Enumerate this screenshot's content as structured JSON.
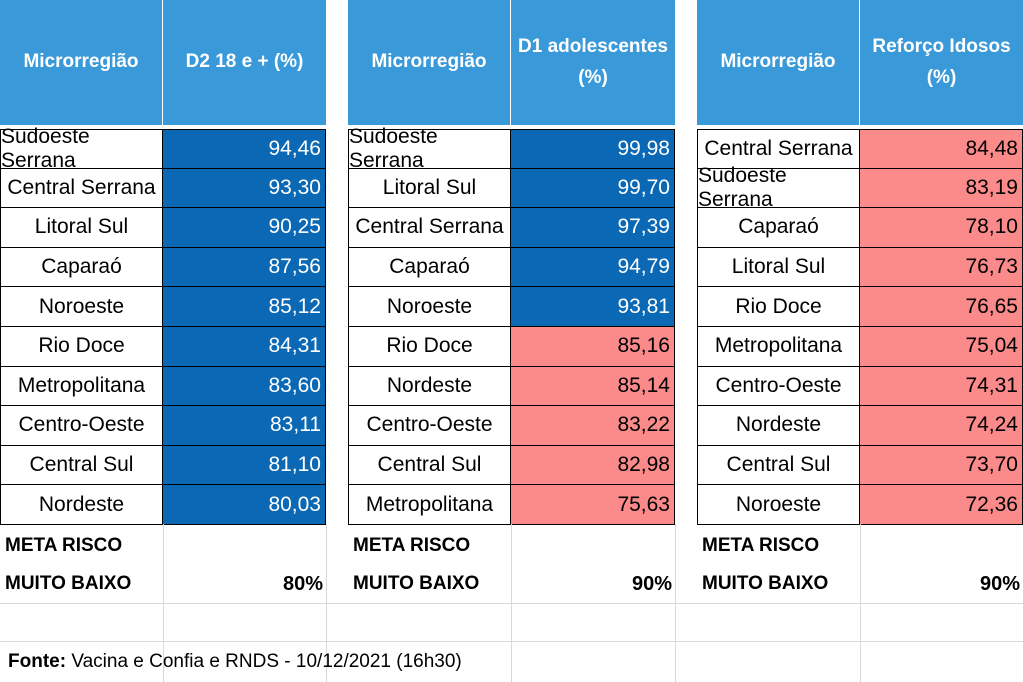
{
  "chart_data": {
    "type": "table",
    "tables": [
      {
        "col1_header": "Microrregião",
        "col2_header_line1": "D2 18 e + (%)",
        "col2_header_line2": "",
        "rows": [
          {
            "name": "Sudoeste Serrana",
            "value": "94,46",
            "status": "blue"
          },
          {
            "name": "Central Serrana",
            "value": "93,30",
            "status": "blue"
          },
          {
            "name": "Litoral Sul",
            "value": "90,25",
            "status": "blue"
          },
          {
            "name": "Caparaó",
            "value": "87,56",
            "status": "blue"
          },
          {
            "name": "Noroeste",
            "value": "85,12",
            "status": "blue"
          },
          {
            "name": "Rio Doce",
            "value": "84,31",
            "status": "blue"
          },
          {
            "name": "Metropolitana",
            "value": "83,60",
            "status": "blue"
          },
          {
            "name": "Centro-Oeste",
            "value": "83,11",
            "status": "blue"
          },
          {
            "name": "Central Sul",
            "value": "81,10",
            "status": "blue"
          },
          {
            "name": "Nordeste",
            "value": "80,03",
            "status": "blue"
          }
        ],
        "meta_line1": "META RISCO",
        "meta_line2": "MUITO BAIXO",
        "meta_value": "80%"
      },
      {
        "col1_header": "Microrregião",
        "col2_header_line1": "D1 adolescentes",
        "col2_header_line2": "(%)",
        "rows": [
          {
            "name": "Sudoeste Serrana",
            "value": "99,98",
            "status": "blue"
          },
          {
            "name": "Litoral Sul",
            "value": "99,70",
            "status": "blue"
          },
          {
            "name": "Central Serrana",
            "value": "97,39",
            "status": "blue"
          },
          {
            "name": "Caparaó",
            "value": "94,79",
            "status": "blue"
          },
          {
            "name": "Noroeste",
            "value": "93,81",
            "status": "blue"
          },
          {
            "name": "Rio Doce",
            "value": "85,16",
            "status": "red"
          },
          {
            "name": "Nordeste",
            "value": "85,14",
            "status": "red"
          },
          {
            "name": "Centro-Oeste",
            "value": "83,22",
            "status": "red"
          },
          {
            "name": "Central Sul",
            "value": "82,98",
            "status": "red"
          },
          {
            "name": "Metropolitana",
            "value": "75,63",
            "status": "red"
          }
        ],
        "meta_line1": "META RISCO",
        "meta_line2": "MUITO BAIXO",
        "meta_value": "90%"
      },
      {
        "col1_header": "Microrregião",
        "col2_header_line1": "Reforço Idosos",
        "col2_header_line2": "(%)",
        "rows": [
          {
            "name": "Central Serrana",
            "value": "84,48",
            "status": "red"
          },
          {
            "name": "Sudoeste Serrana",
            "value": "83,19",
            "status": "red"
          },
          {
            "name": "Caparaó",
            "value": "78,10",
            "status": "red"
          },
          {
            "name": "Litoral Sul",
            "value": "76,73",
            "status": "red"
          },
          {
            "name": "Rio Doce",
            "value": "76,65",
            "status": "red"
          },
          {
            "name": "Metropolitana",
            "value": "75,04",
            "status": "red"
          },
          {
            "name": "Centro-Oeste",
            "value": "74,31",
            "status": "red"
          },
          {
            "name": "Nordeste",
            "value": "74,24",
            "status": "red"
          },
          {
            "name": "Central Sul",
            "value": "73,70",
            "status": "red"
          },
          {
            "name": "Noroeste",
            "value": "72,36",
            "status": "red"
          }
        ],
        "meta_line1": "META RISCO",
        "meta_line2": "MUITO BAIXO",
        "meta_value": "90%"
      }
    ],
    "colors": {
      "header": "#3a9ad9",
      "above_target": "#0a68b4",
      "below_target": "#fb8a8a"
    }
  },
  "source": {
    "label": "Fonte:",
    "text": " Vacina e Confia e RNDS - 10/12/2021 (16h30)"
  }
}
